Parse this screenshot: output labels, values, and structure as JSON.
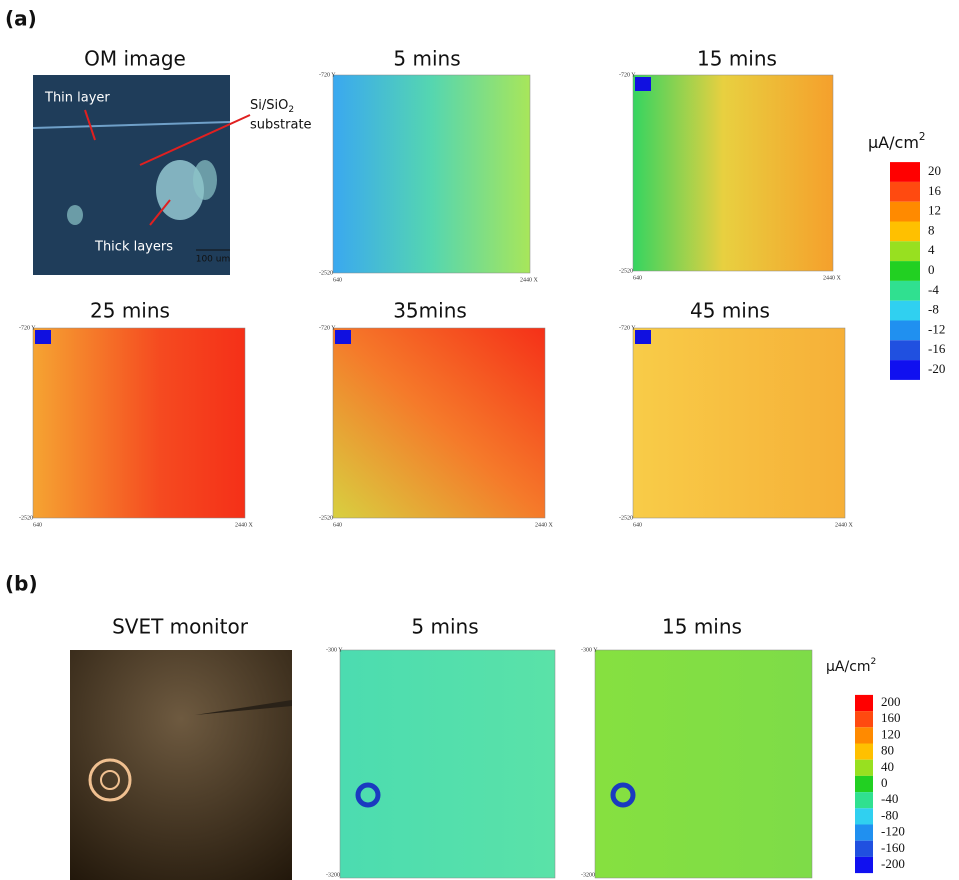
{
  "panel_a": {
    "label": "(a)",
    "om_image": {
      "title": "OM image",
      "thin_layer": "Thin layer",
      "substrate": "Si/SiO",
      "substrate_sub": "2",
      "substrate_line2": "substrate",
      "thick_layers": "Thick layers",
      "scale_bar": "100 um"
    },
    "maps": [
      {
        "title": "5 mins",
        "y_top": "-720 Y",
        "y_bottom": "-2520",
        "x_left": "640",
        "x_right": "2440 X"
      },
      {
        "title": "15 mins",
        "y_top": "-720 Y",
        "y_bottom": "-2520",
        "x_left": "640",
        "x_right": "2440 X"
      },
      {
        "title": "25 mins",
        "y_top": "-720 Y",
        "y_bottom": "-2520",
        "x_left": "640",
        "x_right": "2440 X"
      },
      {
        "title": "35mins",
        "y_top": "-720 Y",
        "y_bottom": "-2520",
        "x_left": "640",
        "x_right": "2440 X"
      },
      {
        "title": "45 mins",
        "y_top": "-720 Y",
        "y_bottom": "-2520",
        "x_left": "640",
        "x_right": "2440 X"
      }
    ],
    "colorbar": {
      "unit": "μA/cm",
      "unit_sup": "2",
      "ticks": [
        20,
        16,
        12,
        8,
        4,
        0,
        -4,
        -8,
        -12,
        -16,
        -20
      ]
    }
  },
  "panel_b": {
    "label": "(b)",
    "monitor": {
      "title": "SVET monitor"
    },
    "maps": [
      {
        "title": "5 mins",
        "y_top": "-300 Y",
        "y_bottom": "-3200"
      },
      {
        "title": "15 mins",
        "y_top": "-300 Y",
        "y_bottom": "-3200"
      }
    ],
    "colorbar": {
      "unit": "μA/cm",
      "unit_sup": "2",
      "ticks": [
        200,
        160,
        120,
        80,
        40,
        0,
        -40,
        -80,
        -120,
        -160,
        -200
      ]
    }
  }
}
